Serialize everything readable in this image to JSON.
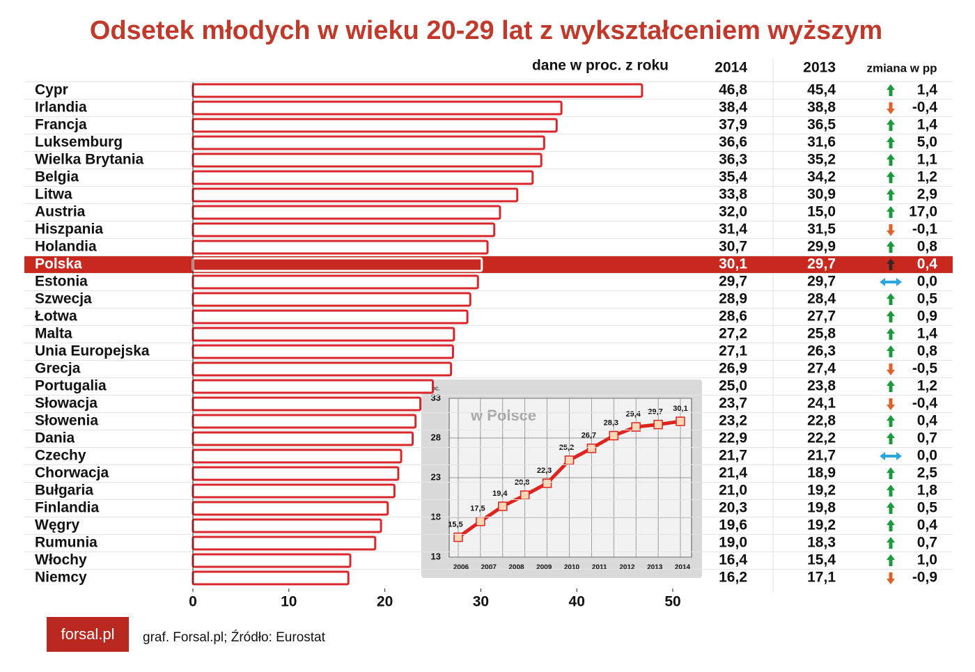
{
  "chart_data": [
    {
      "type": "bar",
      "orientation": "horizontal",
      "title": "Odsetek młodych w wieku 20-29 lat z wykształceniem wyższym",
      "subtitle": "dane w proc. z roku",
      "categories": [
        "Cypr",
        "Irlandia",
        "Francja",
        "Luksemburg",
        "Wielka Brytania",
        "Belgia",
        "Litwa",
        "Austria",
        "Hiszpania",
        "Holandia",
        "Polska",
        "Estonia",
        "Szwecja",
        "Łotwa",
        "Malta",
        "Unia Europejska",
        "Grecja",
        "Portugalia",
        "Słowacja",
        "Słowenia",
        "Dania",
        "Czechy",
        "Chorwacja",
        "Bułgaria",
        "Finlandia",
        "Węgry",
        "Rumunia",
        "Włochy",
        "Niemcy"
      ],
      "series": [
        {
          "name": "2014",
          "color": "#d9262a",
          "values": [
            46.8,
            38.4,
            37.9,
            36.6,
            36.3,
            35.4,
            33.8,
            32.0,
            31.4,
            30.7,
            30.1,
            29.7,
            28.9,
            28.6,
            27.2,
            27.1,
            26.9,
            25.0,
            23.7,
            23.2,
            22.9,
            21.7,
            21.4,
            21.0,
            20.3,
            19.6,
            19.0,
            16.4,
            16.2
          ],
          "value_labels": [
            "46,8",
            "38,4",
            "37,9",
            "36,6",
            "36,3",
            "35,4",
            "33,8",
            "32,0",
            "31,4",
            "30,7",
            "30,1",
            "29,7",
            "28,9",
            "28,6",
            "27,2",
            "27,1",
            "26,9",
            "25,0",
            "23,7",
            "23,2",
            "22,9",
            "21,7",
            "21,4",
            "21,0",
            "20,3",
            "19,6",
            "19,0",
            "16,4",
            "16,2"
          ]
        },
        {
          "name": "2013",
          "values": [
            45.4,
            38.8,
            36.5,
            31.6,
            35.2,
            34.2,
            30.9,
            15.0,
            31.5,
            29.9,
            29.7,
            29.7,
            28.4,
            27.7,
            25.8,
            26.3,
            27.4,
            23.8,
            24.1,
            22.8,
            22.2,
            21.7,
            18.9,
            19.2,
            19.8,
            19.2,
            18.3,
            15.4,
            17.1
          ],
          "value_labels": [
            "45,4",
            "38,8",
            "36,5",
            "31,6",
            "35,2",
            "34,2",
            "30,9",
            "15,0",
            "31,5",
            "29,9",
            "29,7",
            "29,7",
            "28,4",
            "27,7",
            "25,8",
            "26,3",
            "27,4",
            "23,8",
            "24,1",
            "22,8",
            "22,2",
            "21,7",
            "18,9",
            "19,2",
            "19,8",
            "19,2",
            "18,3",
            "15,4",
            "17,1"
          ]
        }
      ],
      "change": {
        "name": "zmiana w pp",
        "values": [
          1.4,
          -0.4,
          1.4,
          5.0,
          1.1,
          1.2,
          2.9,
          17.0,
          -0.1,
          0.8,
          0.4,
          0.0,
          0.5,
          0.9,
          1.4,
          0.8,
          -0.5,
          1.2,
          -0.4,
          0.4,
          0.7,
          0.0,
          2.5,
          1.8,
          0.5,
          0.4,
          0.7,
          1.0,
          -0.9
        ],
        "value_labels": [
          "1,4",
          "-0,4",
          "1,4",
          "5,0",
          "1,1",
          "1,2",
          "2,9",
          "17,0",
          "-0,1",
          "0,8",
          "0,4",
          "0,0",
          "0,5",
          "0,9",
          "1,4",
          "0,8",
          "-0,5",
          "1,2",
          "-0,4",
          "0,4",
          "0,7",
          "0,0",
          "2,5",
          "1,8",
          "0,5",
          "0,4",
          "0,7",
          "1,0",
          "-0,9"
        ],
        "colors": {
          "up": "#1a9a3c",
          "down": "#e0602a",
          "zero": "#2aa6e0"
        }
      },
      "highlight": "Polska",
      "highlight_color": "#c8281e",
      "highlight_arrow_color": "#3a2626",
      "xlim": [
        0,
        50
      ],
      "xticks": [
        0,
        10,
        20,
        30,
        40,
        50
      ],
      "source": "graf. Forsal.pl; Źródło: Eurostat",
      "logo": "forsal.pl"
    },
    {
      "type": "line",
      "title": "w Polsce",
      "ylabel": "proc.",
      "color": "#e0231e",
      "marker_color": "#fbd7b5",
      "values": [
        15.5,
        17.5,
        19.4,
        20.8,
        22.3,
        25.2,
        26.7,
        28.3,
        29.4,
        29.7,
        30.1
      ],
      "value_labels": [
        "15,5",
        "17,5",
        "19,4",
        "20,8",
        "22,3",
        "25,2",
        "26,7",
        "28,3",
        "29,4",
        "29,7",
        "30,1"
      ],
      "xticks": [
        2006,
        2007,
        2008,
        2009,
        2010,
        2011,
        2012,
        2013,
        2014
      ],
      "ylim": [
        13,
        33
      ],
      "yticks": [
        13,
        18,
        23,
        28,
        33
      ],
      "grid": true
    }
  ]
}
